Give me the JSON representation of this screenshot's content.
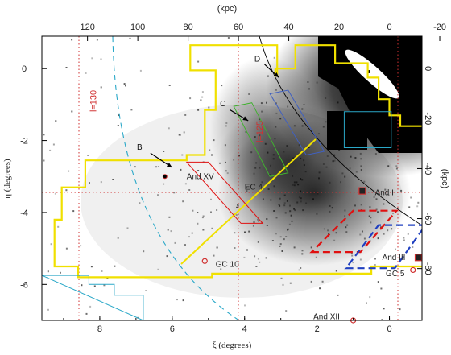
{
  "chart_data": {
    "type": "scatter",
    "title": "",
    "xlabel": "ξ (degrees)",
    "ylabel": "η (degrees)",
    "top_label": "(kpc)",
    "right_label": "(kpc)",
    "xlim": [
      9.6,
      -0.9
    ],
    "ylim": [
      -7.0,
      0.9
    ],
    "x_ticks": [
      8,
      6,
      4,
      2,
      0
    ],
    "y_ticks": [
      0,
      -2,
      -4,
      -6
    ],
    "top_ticks": [
      {
        "label": "120",
        "xi": 8.34
      },
      {
        "label": "100",
        "xi": 6.95
      },
      {
        "label": "80",
        "xi": 5.56
      },
      {
        "label": "60",
        "xi": 4.17
      },
      {
        "label": "40",
        "xi": 2.78
      },
      {
        "label": "20",
        "xi": 1.39
      },
      {
        "label": "0",
        "xi": 0.0
      },
      {
        "label": "-20",
        "xi": -1.39
      }
    ],
    "right_ticks": [
      {
        "label": "0",
        "eta": 0.0
      },
      {
        "label": "-20",
        "eta": -1.39
      },
      {
        "label": "-40",
        "eta": -2.78
      },
      {
        "label": "-60",
        "eta": -4.17
      },
      {
        "label": "-80",
        "eta": -5.56
      }
    ],
    "annotations": [
      {
        "label": "l=130",
        "xi": 8.1,
        "eta": -0.9,
        "rotate": -90,
        "color": "#d03030"
      },
      {
        "label": "l=125",
        "xi": 3.5,
        "eta": -1.75,
        "rotate": -90,
        "color": "#d03030"
      }
    ],
    "objects": [
      {
        "label": "And XV",
        "xi": 6.2,
        "eta": -3.0,
        "marker": "dot",
        "lx": 5.6,
        "ly": -3.0
      },
      {
        "label": "EC 4",
        "xi": 3.35,
        "eta": -3.3,
        "marker": "none",
        "lx": 4.0,
        "ly": -3.3
      },
      {
        "label": "And I",
        "xi": 0.75,
        "eta": -3.4,
        "marker": "square",
        "lx": 0.4,
        "ly": -3.45
      },
      {
        "label": "And III",
        "xi": -0.8,
        "eta": -5.25,
        "marker": "square",
        "lx": 0.2,
        "ly": -5.25
      },
      {
        "label": "GC 10",
        "xi": 5.1,
        "eta": -5.35,
        "marker": "circle",
        "lx": 4.8,
        "ly": -5.45
      },
      {
        "label": "GC 5",
        "xi": -0.65,
        "eta": -5.6,
        "marker": "circle",
        "lx": 0.1,
        "ly": -5.7
      },
      {
        "label": "And XII",
        "xi": 1.0,
        "eta": -7.0,
        "marker": "circle",
        "lx": 2.1,
        "ly": -6.9
      }
    ],
    "arrows": [
      {
        "label": "B",
        "from": [
          6.6,
          -2.35
        ],
        "to": [
          6.0,
          -2.75
        ],
        "lx": 6.9,
        "ly": -2.25
      },
      {
        "label": "C",
        "from": [
          4.4,
          -1.15
        ],
        "to": [
          3.9,
          -1.45
        ],
        "lx": 4.6,
        "ly": -1.05
      },
      {
        "label": "D",
        "from": [
          3.45,
          0.12
        ],
        "to": [
          3.05,
          -0.25
        ],
        "lx": 3.65,
        "ly": 0.2
      }
    ],
    "regions": [
      {
        "name": "survey-footprint",
        "color": "#f0e000",
        "dashed": false,
        "points": [
          [
            5.5,
            0.65
          ],
          [
            3.1,
            0.65
          ],
          [
            3.1,
            -0.2
          ],
          [
            3.15,
            -0.2
          ],
          [
            3.15,
            0.0
          ],
          [
            2.6,
            0.0
          ],
          [
            2.6,
            0.65
          ],
          [
            1.5,
            0.65
          ],
          [
            1.5,
            0.15
          ],
          [
            0.6,
            0.15
          ],
          [
            0.6,
            -0.25
          ],
          [
            0.3,
            -0.25
          ],
          [
            0.3,
            -0.85
          ],
          [
            0.0,
            -0.85
          ],
          [
            0.0,
            -1.3
          ],
          [
            -0.3,
            -1.3
          ],
          [
            -0.3,
            -1.6
          ],
          [
            -0.95,
            -1.6
          ],
          [
            -0.95,
            -1.8
          ],
          [
            -1.5,
            -1.8
          ],
          [
            -1.5,
            -3.4
          ],
          [
            -2.5,
            -3.4
          ],
          [
            -2.5,
            -5.5
          ],
          [
            0.5,
            -5.5
          ],
          [
            0.5,
            -5.7
          ],
          [
            4.9,
            -5.7
          ],
          [
            4.9,
            -5.8
          ],
          [
            8.6,
            -5.8
          ],
          [
            8.6,
            -5.5
          ],
          [
            9.25,
            -5.5
          ],
          [
            9.25,
            -4.2
          ],
          [
            9.05,
            -4.2
          ],
          [
            9.05,
            -3.3
          ],
          [
            8.4,
            -3.3
          ],
          [
            8.4,
            -2.55
          ],
          [
            5.6,
            -2.55
          ],
          [
            5.6,
            -2.4
          ],
          [
            5.1,
            -2.4
          ],
          [
            5.1,
            -1.15
          ],
          [
            4.8,
            -1.15
          ],
          [
            4.8,
            -0.05
          ],
          [
            5.5,
            -0.05
          ]
        ]
      },
      {
        "name": "cyan-box",
        "color": "#2aa8c8",
        "dashed": false,
        "points": [
          [
            1.25,
            -1.2
          ],
          [
            -0.05,
            -1.2
          ],
          [
            -0.05,
            -2.2
          ],
          [
            1.25,
            -2.2
          ]
        ]
      },
      {
        "name": "cyan-steps",
        "color": "#2aa8c8",
        "dashed": false,
        "points": [
          [
            9.6,
            -5.75
          ],
          [
            8.3,
            -5.75
          ],
          [
            8.3,
            -6.0
          ],
          [
            7.6,
            -6.0
          ],
          [
            7.6,
            -6.3
          ],
          [
            6.8,
            -6.3
          ],
          [
            6.8,
            -7.0
          ]
        ]
      },
      {
        "name": "red-box",
        "color": "#e01010",
        "dashed": true,
        "points": [
          [
            2.15,
            -5.1
          ],
          [
            0.8,
            -5.1
          ],
          [
            -0.2,
            -3.95
          ],
          [
            1.0,
            -3.95
          ]
        ]
      },
      {
        "name": "blue-box",
        "color": "#2040c0",
        "dashed": true,
        "points": [
          [
            1.2,
            -5.55
          ],
          [
            -0.15,
            -5.55
          ],
          [
            -1.0,
            -4.35
          ],
          [
            0.3,
            -4.35
          ]
        ]
      },
      {
        "name": "red-strip",
        "color": "#e01010",
        "dashed": false,
        "points": [
          [
            5.0,
            -2.6
          ],
          [
            3.5,
            -4.3
          ],
          [
            4.1,
            -4.3
          ],
          [
            5.6,
            -2.6
          ]
        ]
      },
      {
        "name": "green-strip",
        "color": "#40b030",
        "dashed": false,
        "points": [
          [
            3.8,
            -0.95
          ],
          [
            2.8,
            -2.9
          ],
          [
            3.3,
            -3.0
          ],
          [
            4.3,
            -1.05
          ]
        ]
      },
      {
        "name": "blue-strip",
        "color": "#4060c0",
        "dashed": false,
        "points": [
          [
            2.8,
            -0.6
          ],
          [
            1.8,
            -2.3
          ],
          [
            2.3,
            -2.4
          ],
          [
            3.3,
            -0.7
          ]
        ]
      }
    ],
    "grid": false
  }
}
